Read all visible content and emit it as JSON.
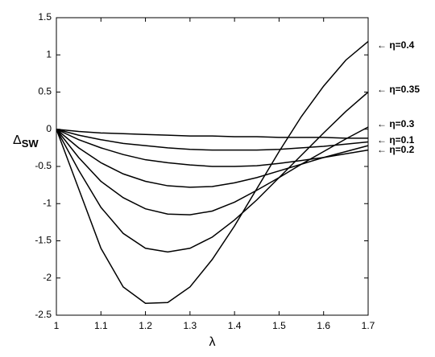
{
  "chart_data": {
    "type": "line",
    "xlabel": "λ",
    "ylabel": {
      "symbol": "Δ",
      "subscript": "SW"
    },
    "x": [
      1,
      1.05,
      1.1,
      1.15,
      1.2,
      1.25,
      1.3,
      1.35,
      1.4,
      1.45,
      1.5,
      1.55,
      1.6,
      1.65,
      1.7
    ],
    "series": [
      {
        "color": "#000000",
        "values": [
          0,
          -0.03,
          -0.05,
          -0.06,
          -0.07,
          -0.08,
          -0.09,
          -0.09,
          -0.1,
          -0.1,
          -0.11,
          -0.11,
          -0.11,
          -0.12,
          -0.12
        ]
      },
      {
        "color": "#000000",
        "values": [
          0,
          -0.08,
          -0.14,
          -0.19,
          -0.22,
          -0.25,
          -0.27,
          -0.28,
          -0.28,
          -0.28,
          -0.27,
          -0.25,
          -0.23,
          -0.2,
          -0.17
        ]
      },
      {
        "color": "#000000",
        "values": [
          0,
          -0.14,
          -0.25,
          -0.34,
          -0.41,
          -0.45,
          -0.48,
          -0.5,
          -0.5,
          -0.49,
          -0.46,
          -0.42,
          -0.38,
          -0.33,
          -0.28
        ]
      },
      {
        "color": "#000000",
        "values": [
          0,
          -0.25,
          -0.45,
          -0.6,
          -0.7,
          -0.76,
          -0.78,
          -0.77,
          -0.72,
          -0.65,
          -0.56,
          -0.47,
          -0.38,
          -0.3,
          -0.22
        ]
      },
      {
        "color": "#000000",
        "values": [
          0,
          -0.38,
          -0.7,
          -0.92,
          -1.07,
          -1.14,
          -1.15,
          -1.1,
          -0.98,
          -0.82,
          -0.65,
          -0.47,
          -0.3,
          -0.13,
          0.03
        ]
      },
      {
        "color": "#000000",
        "values": [
          0,
          -0.55,
          -1.05,
          -1.4,
          -1.6,
          -1.65,
          -1.6,
          -1.45,
          -1.22,
          -0.95,
          -0.65,
          -0.35,
          -0.05,
          0.24,
          0.5
        ]
      },
      {
        "color": "#000000",
        "values": [
          0,
          -0.8,
          -1.6,
          -2.12,
          -2.34,
          -2.33,
          -2.12,
          -1.75,
          -1.3,
          -0.8,
          -0.3,
          0.17,
          0.58,
          0.93,
          1.18
        ]
      }
    ],
    "annotations": [
      "← η=0.4",
      "← η=0.35",
      "← η=0.3",
      "← η=0.1",
      "← η=0.2"
    ],
    "xlim": [
      1,
      1.7
    ],
    "xticks": [
      1,
      1.1,
      1.2,
      1.3,
      1.4,
      1.5,
      1.6,
      1.7
    ],
    "ylim": [
      -2.5,
      1.5
    ],
    "yticks": [
      -2.5,
      -2,
      -1.5,
      -1,
      -0.5,
      0,
      0.5,
      1,
      1.5
    ],
    "grid": false
  }
}
